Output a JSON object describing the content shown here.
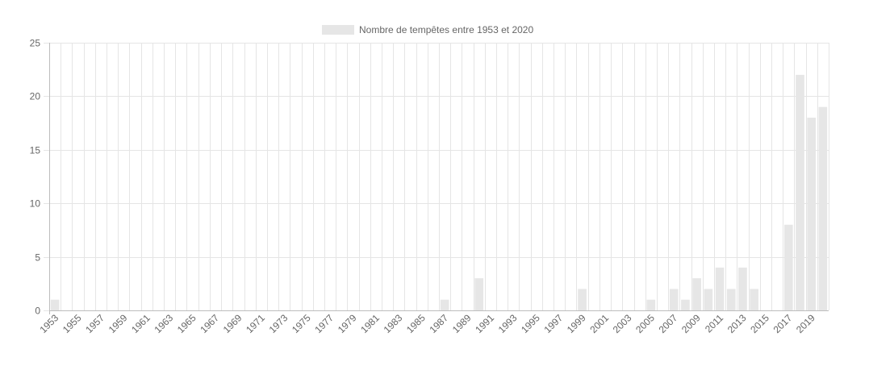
{
  "chart_data": {
    "type": "bar",
    "legend": {
      "label": "Nombre de tempêtes entre 1953 et 2020",
      "position": "top",
      "swatch_color": "#e6e6e6"
    },
    "bar_color": "#e6e6e6",
    "grid": true,
    "grid_color": "#e5e5e5",
    "ylim": [
      0,
      25
    ],
    "y_ticks": [
      "0",
      "5",
      "10",
      "15",
      "20",
      "25"
    ],
    "categories": [
      "1953",
      "1954",
      "1955",
      "1956",
      "1957",
      "1958",
      "1959",
      "1960",
      "1961",
      "1962",
      "1963",
      "1964",
      "1965",
      "1966",
      "1967",
      "1968",
      "1969",
      "1970",
      "1971",
      "1972",
      "1973",
      "1974",
      "1975",
      "1976",
      "1977",
      "1978",
      "1979",
      "1980",
      "1981",
      "1982",
      "1983",
      "1984",
      "1985",
      "1986",
      "1987",
      "1988",
      "1989",
      "1990",
      "1991",
      "1992",
      "1993",
      "1994",
      "1995",
      "1996",
      "1997",
      "1998",
      "1999",
      "2000",
      "2001",
      "2002",
      "2003",
      "2004",
      "2005",
      "2006",
      "2007",
      "2008",
      "2009",
      "2010",
      "2011",
      "2012",
      "2013",
      "2014",
      "2015",
      "2016",
      "2017",
      "2018",
      "2019",
      "2020"
    ],
    "values": [
      1,
      0,
      0,
      0,
      0,
      0,
      0,
      0,
      0,
      0,
      0,
      0,
      0,
      0,
      0,
      0,
      0,
      0,
      0,
      0,
      0,
      0,
      0,
      0,
      0,
      0,
      0,
      0,
      0,
      0,
      0,
      0,
      0,
      0,
      1,
      0,
      0,
      3,
      0,
      0,
      0,
      0,
      0,
      0,
      0,
      0,
      2,
      0,
      0,
      0,
      0,
      0,
      1,
      0,
      2,
      1,
      3,
      2,
      4,
      2,
      4,
      2,
      0,
      0,
      8,
      22,
      18,
      19
    ],
    "x_tick_labels": [
      "1953",
      "1955",
      "1957",
      "1959",
      "1961",
      "1963",
      "1965",
      "1967",
      "1969",
      "1971",
      "1973",
      "1975",
      "1977",
      "1979",
      "1981",
      "1983",
      "1985",
      "1987",
      "1989",
      "1991",
      "1993",
      "1995",
      "1997",
      "1999",
      "2001",
      "2003",
      "2005",
      "2007",
      "2009",
      "2011",
      "2013",
      "2015",
      "2017",
      "2019"
    ]
  }
}
